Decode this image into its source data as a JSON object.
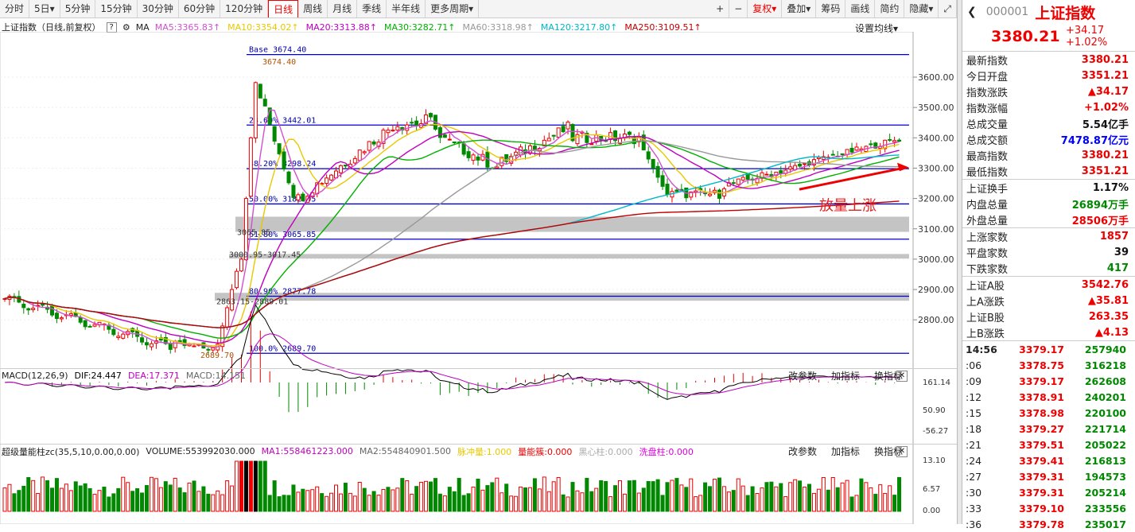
{
  "toolbar": {
    "periods": [
      "分时",
      "5日▾",
      "5分钟",
      "15分钟",
      "30分钟",
      "60分钟",
      "120分钟",
      "日线",
      "周线",
      "月线",
      "季线",
      "半年线",
      "更多周期▾"
    ],
    "active": "日线",
    "right": [
      "+",
      "−",
      "复权▾",
      "叠加▾",
      "筹码",
      "画线",
      "简约",
      "隐藏▾"
    ]
  },
  "legend": {
    "title": "上证指数（日线,前复权）",
    "ma_label": "MA",
    "items": [
      {
        "label": "MA5:3365.83",
        "color": "#d050d0"
      },
      {
        "label": "MA10:3354.02",
        "color": "#e8c800"
      },
      {
        "label": "MA20:3313.88",
        "color": "#c000c0"
      },
      {
        "label": "MA30:3282.71",
        "color": "#00b000"
      },
      {
        "label": "MA60:3318.98",
        "color": "#999999"
      },
      {
        "label": "MA120:3217.80",
        "color": "#00b8c8"
      },
      {
        "label": "MA250:3109.51",
        "color": "#c00000"
      }
    ],
    "settings": "设置均线▾"
  },
  "price_axis": [
    "3600.00",
    "3500.00",
    "3400.00",
    "3300.00",
    "3200.00",
    "3100.00",
    "3000.00",
    "2900.00",
    "2800.00"
  ],
  "fib": [
    {
      "label": "Base  3674.40",
      "value": 3674.4
    },
    {
      "label": "23.60% 3442.01",
      "value": 3442.01
    },
    {
      "label": "38.20% 3298.24",
      "value": 3298.24
    },
    {
      "label": "50.00% 3182.05",
      "value": 3182.05
    },
    {
      "label": "61.80% 3065.85",
      "value": 3065.85
    },
    {
      "label": "80.90% 2877.78",
      "value": 2877.78
    },
    {
      "label": "100.0% 2689.70",
      "value": 2689.7
    }
  ],
  "annotations": {
    "high": "3674.40",
    "low": "2689.70",
    "gap1": "3000.95-3017.45",
    "gap2": "2863.15-2889.01",
    "gap3": "3065.85",
    "promo": "放量上涨"
  },
  "macd": {
    "label": "MACD(12,26,9)",
    "dif": "DIF:24.447",
    "dea": "DEA:17.371",
    "macd": "MACD:14.151",
    "axis": [
      "161.14",
      "50.90",
      "-56.27"
    ],
    "buttons": [
      "改参数",
      "加指标",
      "换指标"
    ]
  },
  "vol": {
    "label": "超级量能柱zc(35,5,10,0.00,0.00)",
    "volume": "VOLUME:553992030.000",
    "ma1": "MA1:558461223.000",
    "ma2": "MA2:554840901.500",
    "m1": "脉冲量:1.000",
    "m2": "量能簇:0.000",
    "m3": "黑心柱:0.000",
    "m4": "洗盘柱:0.000",
    "axis": [
      "13.10",
      "6.57",
      "0.00"
    ],
    "buttons": [
      "改参数",
      "加指标",
      "换指标"
    ]
  },
  "panel": {
    "code": "000001",
    "name": "上证指数",
    "price": "3380.21",
    "change": "+34.17",
    "pct": "+1.02%",
    "rows": [
      {
        "k": "最新指数",
        "v": "3380.21",
        "c": "red"
      },
      {
        "k": "今日开盘",
        "v": "3351.21",
        "c": "red"
      },
      {
        "k": "指数涨跌",
        "v": "▲34.17",
        "c": "red"
      },
      {
        "k": "指数涨幅",
        "v": "+1.02%",
        "c": "red"
      },
      {
        "k": "总成交量",
        "v": "5.54亿手",
        "c": "black"
      },
      {
        "k": "总成交额",
        "v": "7478.87亿元",
        "c": "blue"
      },
      {
        "k": "最高指数",
        "v": "3380.21",
        "c": "red"
      },
      {
        "k": "最低指数",
        "v": "3351.21",
        "c": "red"
      }
    ],
    "rows2": [
      {
        "k": "上证换手",
        "v": "1.17%",
        "c": "black"
      },
      {
        "k": "内盘总量",
        "v": "26894万手",
        "c": "green"
      },
      {
        "k": "外盘总量",
        "v": "28506万手",
        "c": "red"
      }
    ],
    "rows3": [
      {
        "k": "上涨家数",
        "v": "1857",
        "c": "red"
      },
      {
        "k": "平盘家数",
        "v": "39",
        "c": "black"
      },
      {
        "k": "下跌家数",
        "v": "417",
        "c": "green"
      }
    ],
    "rows4": [
      {
        "k": "上证A股",
        "v": "3542.76",
        "c": "red"
      },
      {
        "k": "上A涨跌",
        "v": "▲35.81",
        "c": "red"
      },
      {
        "k": "上证B股",
        "v": "263.35",
        "c": "red"
      },
      {
        "k": "上B涨跌",
        "v": "▲4.13",
        "c": "red"
      }
    ],
    "ticks": [
      {
        "t": "14:56",
        "p": "3379.17",
        "q": "257940"
      },
      {
        "t": ":06",
        "p": "3378.75",
        "q": "316218"
      },
      {
        "t": ":09",
        "p": "3379.17",
        "q": "262608"
      },
      {
        "t": ":12",
        "p": "3378.91",
        "q": "240201"
      },
      {
        "t": ":15",
        "p": "3378.98",
        "q": "220100"
      },
      {
        "t": ":18",
        "p": "3379.27",
        "q": "221714"
      },
      {
        "t": ":21",
        "p": "3379.51",
        "q": "205022"
      },
      {
        "t": ":24",
        "p": "3379.41",
        "q": "216813"
      },
      {
        "t": ":27",
        "p": "3379.31",
        "q": "194573"
      },
      {
        "t": ":30",
        "p": "3379.31",
        "q": "205214"
      },
      {
        "t": ":33",
        "p": "3379.10",
        "q": "233556"
      },
      {
        "t": ":36",
        "p": "3379.78",
        "q": "235017"
      }
    ]
  }
}
